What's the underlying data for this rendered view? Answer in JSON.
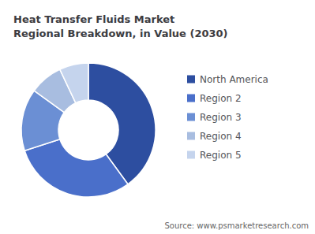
{
  "chart_data": {
    "type": "pie",
    "title": "Heat Transfer Fluids Market\nRegional Breakdown, in Value (2030)",
    "categories": [
      "North America",
      "Region 2",
      "Region 3",
      "Region 4",
      "Region 5"
    ],
    "values": [
      40,
      30,
      15,
      8,
      7
    ],
    "colors": [
      "#2d4ea0",
      "#4a6fca",
      "#6b8fd4",
      "#a8bde0",
      "#c5d4ed"
    ],
    "legend": "right",
    "annotations": [
      "Source: www.psmarketresearch.com"
    ]
  }
}
